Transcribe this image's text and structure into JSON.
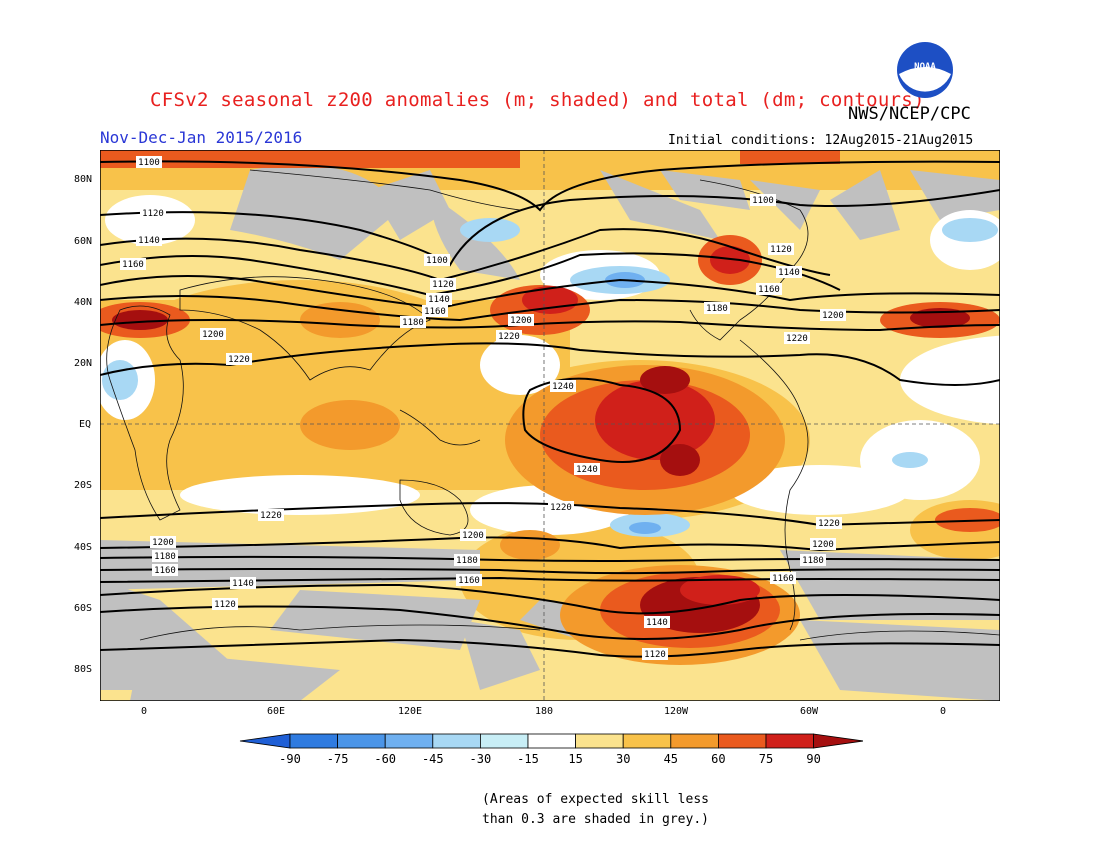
{
  "title": "CFSv2 seasonal z200 anomalies (m; shaded) and total (dm; contours)",
  "agency": "NWS/NCEP/CPC",
  "logo_text": "NOAA",
  "season": "Nov-Dec-Jan 2015/2016",
  "initial_conditions": "Initial conditions: 12Aug2015-21Aug2015",
  "lat_labels": [
    "80N",
    "60N",
    "40N",
    "20N",
    "EQ",
    "20S",
    "40S",
    "60S",
    "80S"
  ],
  "lon_labels": [
    "0",
    "60E",
    "120E",
    "180",
    "120W",
    "60W",
    "0"
  ],
  "contour_levels": [
    "1100",
    "1120",
    "1140",
    "1160",
    "1180",
    "1200",
    "1220",
    "1240"
  ],
  "colorbar": {
    "labels": [
      "-90",
      "-75",
      "-60",
      "-45",
      "-30",
      "-15",
      "15",
      "30",
      "45",
      "60",
      "75",
      "90"
    ],
    "colors": [
      "#1f5fd6",
      "#2f7be0",
      "#4b95e8",
      "#6fb0f0",
      "#a8d8f4",
      "#c8eef6",
      "#ffffff",
      "#fbe38e",
      "#f8c24a",
      "#f39a2c",
      "#ea5a1e",
      "#d0201a",
      "#a50f0f"
    ]
  },
  "note_line1": "(Areas of expected skill less",
  "note_line2": "than 0.3 are shaded in grey.)"
}
